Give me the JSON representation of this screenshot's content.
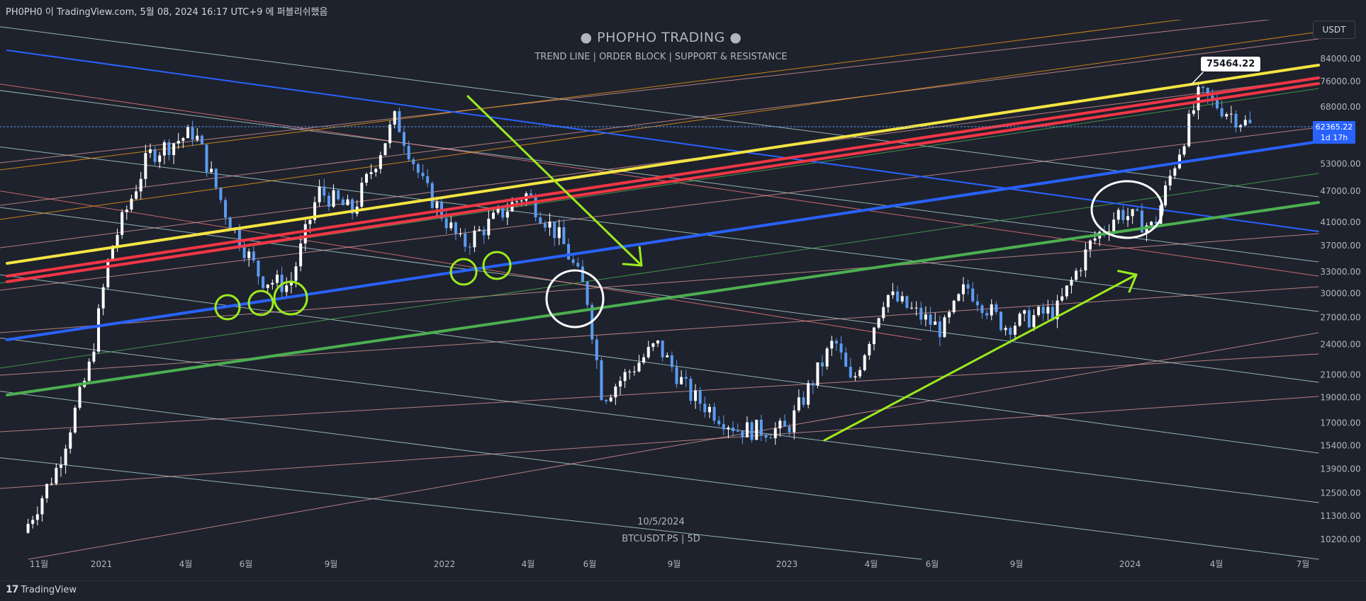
{
  "attribution": "PH0PH0 이 TradingView.com, 5월 08, 2024 16:17 UTC+9 에 퍼블리쉬했음",
  "currency_button": "USDT",
  "headline": "● PHOPHO TRADING ●",
  "subline": "TREND LINE  |  ORDER BLOCK  |  SUPPORT & RESISTANCE",
  "date_caption": "10/5/2024",
  "symbol_caption": "BTCUSDT.PS | 5D",
  "callout_price": "75464.22",
  "last_price": "62365.22",
  "last_countdown": "1d 17h",
  "footer_brand": "TradingView",
  "colors": {
    "background": "#1e222d",
    "up": "#ffffff",
    "down": "#5b9cf0",
    "yellow": "#f4e442",
    "red": "#f23645",
    "blue": "#2962ff",
    "green": "#4caf50",
    "arrow": "#9beb1c"
  },
  "chart_data": {
    "type": "candlestick",
    "symbol": "BTCUSDT.PS",
    "interval": "5D",
    "y_axis": {
      "scale": "log",
      "ticks": [
        "84000.00",
        "76000.00",
        "68000.00",
        "62365.22",
        "53000.00",
        "47000.00",
        "41000.00",
        "37000.00",
        "33000.00",
        "30000.00",
        "27000.00",
        "24000.00",
        "21000.00",
        "19000.00",
        "17000.00",
        "15400.00",
        "13900.00",
        "12500.00",
        "11300.00",
        "10200.00"
      ]
    },
    "x_axis": {
      "ticks": [
        "11월",
        "2021",
        "4월",
        "6월",
        "9월",
        "2022",
        "4월",
        "6월",
        "9월",
        "2023",
        "4월",
        "6월",
        "9월",
        "2024",
        "4월",
        "7월"
      ]
    },
    "ohlc_anchors": [
      {
        "date": "2020-10-10",
        "price": 10500
      },
      {
        "date": "2020-11-15",
        "price": 14000
      },
      {
        "date": "2020-12-20",
        "price": 22000
      },
      {
        "date": "2021-01-10",
        "price": 36000
      },
      {
        "date": "2021-02-20",
        "price": 55000
      },
      {
        "date": "2021-04-10",
        "price": 61000
      },
      {
        "date": "2021-05-15",
        "price": 42000
      },
      {
        "date": "2021-06-20",
        "price": 32000
      },
      {
        "date": "2021-07-20",
        "price": 31000
      },
      {
        "date": "2021-08-20",
        "price": 47000
      },
      {
        "date": "2021-09-25",
        "price": 43000
      },
      {
        "date": "2021-11-10",
        "price": 65000
      },
      {
        "date": "2021-12-10",
        "price": 48000
      },
      {
        "date": "2022-01-20",
        "price": 37000
      },
      {
        "date": "2022-03-28",
        "price": 46500
      },
      {
        "date": "2022-05-05",
        "price": 38000
      },
      {
        "date": "2022-06-01",
        "price": 30000
      },
      {
        "date": "2022-06-18",
        "price": 19000
      },
      {
        "date": "2022-08-15",
        "price": 24000
      },
      {
        "date": "2022-09-20",
        "price": 19200
      },
      {
        "date": "2022-11-10",
        "price": 16500
      },
      {
        "date": "2022-12-31",
        "price": 16500
      },
      {
        "date": "2023-02-20",
        "price": 24500
      },
      {
        "date": "2023-03-10",
        "price": 20000
      },
      {
        "date": "2023-04-15",
        "price": 30000
      },
      {
        "date": "2023-06-15",
        "price": 25500
      },
      {
        "date": "2023-07-10",
        "price": 31000
      },
      {
        "date": "2023-08-20",
        "price": 26000
      },
      {
        "date": "2023-10-15",
        "price": 28000
      },
      {
        "date": "2023-11-20",
        "price": 37500
      },
      {
        "date": "2023-12-20",
        "price": 43000
      },
      {
        "date": "2024-01-25",
        "price": 40000
      },
      {
        "date": "2024-02-15",
        "price": 52000
      },
      {
        "date": "2024-03-14",
        "price": 72000
      },
      {
        "date": "2024-04-05",
        "price": 68000
      },
      {
        "date": "2024-05-08",
        "price": 62365
      }
    ],
    "trend_lines": [
      {
        "name": "yellow",
        "color": "#f4e442",
        "width": 4
      },
      {
        "name": "red-upper",
        "color": "#f23645",
        "width": 4
      },
      {
        "name": "red-lower",
        "color": "#f23645",
        "width": 4
      },
      {
        "name": "blue-support",
        "color": "#2962ff",
        "width": 4
      },
      {
        "name": "green-support",
        "color": "#4caf50",
        "width": 4
      },
      {
        "name": "blue-resistance",
        "color": "#2962ff",
        "width": 2
      }
    ],
    "annotations": [
      {
        "type": "arrow",
        "color": "#9beb1c",
        "direction": "down-right"
      },
      {
        "type": "arrow",
        "color": "#9beb1c",
        "direction": "up-right"
      },
      {
        "type": "circle",
        "color": "#9beb1c",
        "count": 5
      },
      {
        "type": "circle",
        "color": "#ffffff",
        "count": 2
      }
    ]
  }
}
